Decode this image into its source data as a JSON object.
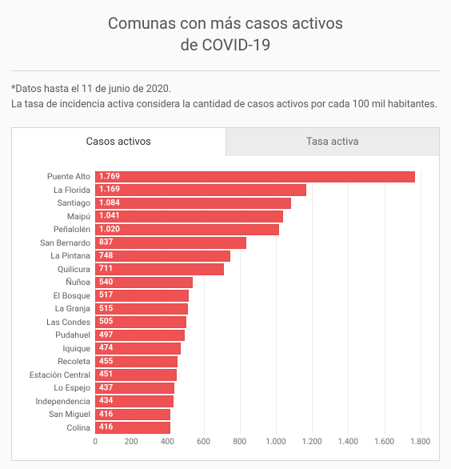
{
  "title_line1": "Comunas con más casos activos",
  "title_line2": "de COVID-19",
  "note_line1": "*Datos hasta el 11 de junio de 2020.",
  "note_line2": "La tasa de incidencia activa considera la cantidad de casos activos por cada 100 mil habitantes.",
  "tabs": {
    "active": "Casos activos",
    "inactive": "Tasa activa"
  },
  "chart": {
    "type": "bar-horizontal",
    "bar_color": "#ee5253",
    "background_color": "#ffffff",
    "grid_color": "#ececec",
    "axis_color": "#cccccc",
    "label_color": "#5a5a5a",
    "value_label_color": "#ffffff",
    "font_size_ylabel": 10.5,
    "font_size_value": 10,
    "font_size_xtick": 10,
    "xmin": 0,
    "xmax": 1850,
    "xtick_step": 200,
    "xticks": [
      {
        "v": 0,
        "label": "0"
      },
      {
        "v": 200,
        "label": "200"
      },
      {
        "v": 400,
        "label": "400"
      },
      {
        "v": 600,
        "label": "600"
      },
      {
        "v": 800,
        "label": "800"
      },
      {
        "v": 1000,
        "label": "1.000"
      },
      {
        "v": 1200,
        "label": "1.200"
      },
      {
        "v": 1400,
        "label": "1.400"
      },
      {
        "v": 1600,
        "label": "1.600"
      },
      {
        "v": 1800,
        "label": "1.800"
      }
    ],
    "rows": [
      {
        "name": "Puente Alto",
        "value": 1769,
        "label": "1.769"
      },
      {
        "name": "La Florida",
        "value": 1169,
        "label": "1.169"
      },
      {
        "name": "Santiago",
        "value": 1084,
        "label": "1.084"
      },
      {
        "name": "Maipú",
        "value": 1041,
        "label": "1.041"
      },
      {
        "name": "Peñalolén",
        "value": 1020,
        "label": "1.020"
      },
      {
        "name": "San Bernardo",
        "value": 837,
        "label": "837"
      },
      {
        "name": "La Pintana",
        "value": 748,
        "label": "748"
      },
      {
        "name": "Quilicura",
        "value": 711,
        "label": "711"
      },
      {
        "name": "Ñuñoa",
        "value": 540,
        "label": "540"
      },
      {
        "name": "El Bosque",
        "value": 517,
        "label": "517"
      },
      {
        "name": "La Granja",
        "value": 515,
        "label": "515"
      },
      {
        "name": "Las Condes",
        "value": 505,
        "label": "505"
      },
      {
        "name": "Pudahuel",
        "value": 497,
        "label": "497"
      },
      {
        "name": "Iquique",
        "value": 474,
        "label": "474"
      },
      {
        "name": "Recoleta",
        "value": 455,
        "label": "455"
      },
      {
        "name": "Estación Central",
        "value": 451,
        "label": "451"
      },
      {
        "name": "Lo Espejo",
        "value": 437,
        "label": "437"
      },
      {
        "name": "Independencia",
        "value": 434,
        "label": "434"
      },
      {
        "name": "San Miguel",
        "value": 416,
        "label": "416"
      },
      {
        "name": "Colina",
        "value": 416,
        "label": "416"
      }
    ]
  }
}
